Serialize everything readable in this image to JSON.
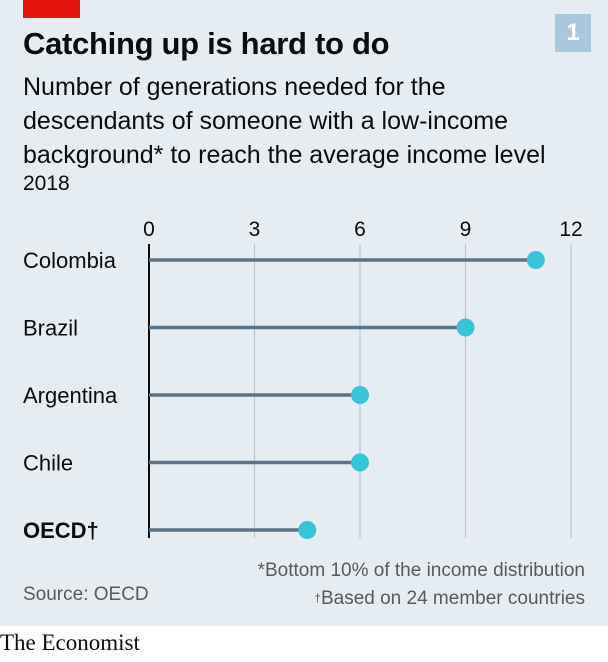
{
  "header": {
    "badge": "1",
    "title": "Catching up is hard to do",
    "subtitle_lines": [
      "Number of generations needed for the",
      "descendants of someone with a low-income",
      "background* to reach the average income level"
    ],
    "year": "2018"
  },
  "footer": {
    "note_1": "*Bottom 10% of the income distribution",
    "note_2_mark": "†",
    "note_2_text": "Based on 24 member countries",
    "source": "Source: OECD",
    "brand": "The Economist"
  },
  "colors": {
    "background": "#e6edf2",
    "line": "#5b7387",
    "dot": "#36c4d6",
    "grid": "#b8c6cf",
    "accent_red": "#e3120b",
    "badge": "#a9c8dc"
  },
  "chart_data": {
    "type": "dot-plot",
    "title": "Catching up is hard to do",
    "categories": [
      "Colombia",
      "Brazil",
      "Argentina",
      "Chile",
      "OECD†"
    ],
    "values": [
      11,
      9,
      6,
      6,
      4.5
    ],
    "xlim": [
      0,
      12
    ],
    "xticks": [
      0,
      3,
      6,
      9,
      12
    ],
    "tick_labels": [
      "0",
      "3",
      "6",
      "9",
      "12"
    ],
    "axis_position": "top",
    "grid": true,
    "bold_categories": [
      "OECD†"
    ]
  }
}
